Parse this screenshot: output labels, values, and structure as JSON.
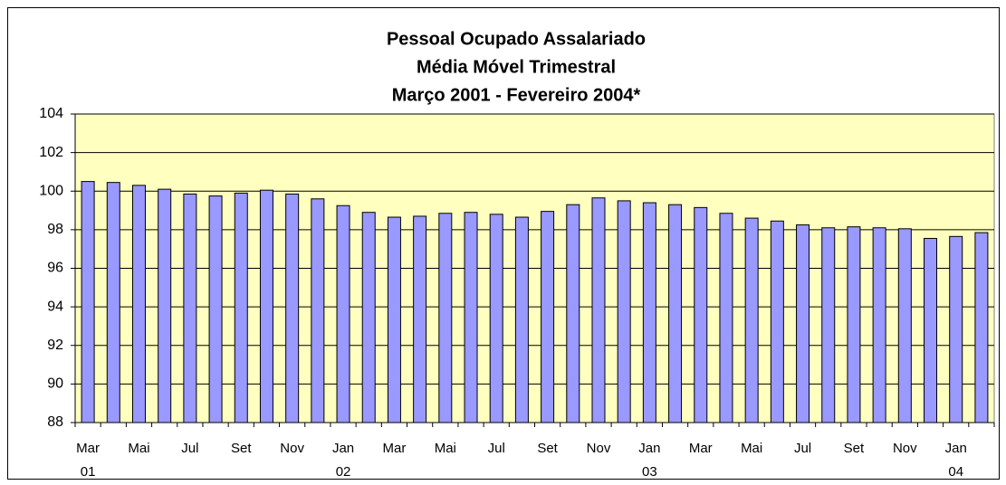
{
  "chart_data": {
    "type": "bar",
    "title": [
      "Pessoal Ocupado Assalariado",
      "Média Móvel Trimestral",
      "Março 2001 - Fevereiro 2004*"
    ],
    "categories": [
      "Mar",
      null,
      "Mai",
      null,
      "Jul",
      null,
      "Set",
      null,
      "Nov",
      null,
      "Jan",
      null,
      "Mar",
      null,
      "Mai",
      null,
      "Jul",
      null,
      "Set",
      null,
      "Nov",
      null,
      "Jan",
      null,
      "Mar",
      null,
      "Mai",
      null,
      "Jul",
      null,
      "Set",
      null,
      "Nov",
      null,
      "Jan",
      null
    ],
    "category_years": [
      "01",
      null,
      null,
      null,
      null,
      null,
      null,
      null,
      null,
      null,
      "02",
      null,
      null,
      null,
      null,
      null,
      null,
      null,
      null,
      null,
      null,
      null,
      "03",
      null,
      null,
      null,
      null,
      null,
      null,
      null,
      null,
      null,
      null,
      null,
      "04",
      null
    ],
    "values": [
      100.5,
      100.45,
      100.3,
      100.1,
      99.85,
      99.75,
      99.9,
      100.05,
      99.85,
      99.6,
      99.25,
      98.9,
      98.65,
      98.7,
      98.85,
      98.9,
      98.8,
      98.65,
      98.95,
      99.3,
      99.65,
      99.5,
      99.4,
      99.3,
      99.15,
      98.85,
      98.6,
      98.45,
      98.25,
      98.1,
      98.15,
      98.1,
      98.05,
      97.55,
      97.65,
      97.85
    ],
    "color": "#9999ff",
    "ylim": [
      88,
      104
    ],
    "yticks": [
      88,
      90,
      92,
      94,
      96,
      98,
      100,
      102,
      104
    ],
    "grid": true
  }
}
